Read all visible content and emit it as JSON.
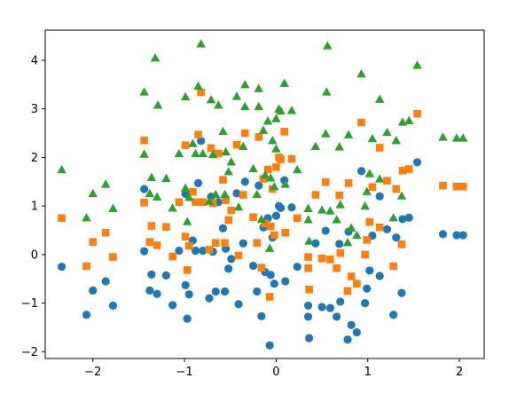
{
  "chart_data": {
    "type": "scatter",
    "title": "",
    "xlabel": "",
    "ylabel": "",
    "xlim": [
      -2.52,
      2.27
    ],
    "ylim": [
      -2.14,
      4.62
    ],
    "x_ticks": [
      -2,
      -1,
      0,
      1,
      2
    ],
    "y_ticks": [
      -2,
      -1,
      0,
      1,
      2,
      3,
      4
    ],
    "x_tick_labels": [
      "−2",
      "−1",
      "0",
      "1",
      "2"
    ],
    "y_tick_labels": [
      "−2",
      "−1",
      "0",
      "1",
      "2",
      "3",
      "4"
    ],
    "grid": false,
    "legend": false,
    "series": [
      {
        "marker": "circle",
        "color": "#1f77b4",
        "points": [
          [
            -2.34,
            -0.25
          ],
          [
            -2.07,
            -1.24
          ],
          [
            -2.0,
            -0.74
          ],
          [
            -1.86,
            -0.55
          ],
          [
            -1.78,
            -1.05
          ],
          [
            -1.44,
            1.35
          ],
          [
            -1.44,
            0.07
          ],
          [
            -1.38,
            -0.74
          ],
          [
            -1.36,
            -0.41
          ],
          [
            -1.3,
            -0.81
          ],
          [
            -1.2,
            -0.43
          ],
          [
            -1.13,
            -1.04
          ],
          [
            -1.06,
            0.08
          ],
          [
            -0.99,
            1.25
          ],
          [
            -0.99,
            -0.63
          ],
          [
            -0.97,
            -1.32
          ],
          [
            -0.95,
            -0.82
          ],
          [
            -0.91,
            0.29
          ],
          [
            -0.88,
            0.08
          ],
          [
            -0.85,
            1.47
          ],
          [
            -0.82,
            2.34
          ],
          [
            -0.8,
            0.08
          ],
          [
            -0.73,
            -0.9
          ],
          [
            -0.71,
            1.19
          ],
          [
            -0.69,
            0.06
          ],
          [
            -0.66,
            -0.76
          ],
          [
            -0.63,
            1.08
          ],
          [
            -0.58,
            0.54
          ],
          [
            -0.56,
            -0.76
          ],
          [
            -0.55,
            0.12
          ],
          [
            -0.52,
            -0.29
          ],
          [
            -0.49,
            -0.09
          ],
          [
            -0.43,
            1.26
          ],
          [
            -0.41,
            -1.02
          ],
          [
            -0.36,
            0.23
          ],
          [
            -0.34,
            1.5
          ],
          [
            -0.25,
            -0.23
          ],
          [
            -0.21,
            -0.76
          ],
          [
            -0.19,
            1.42
          ],
          [
            -0.16,
            -1.27
          ],
          [
            -0.14,
            0.56
          ],
          [
            -0.12,
            -0.36
          ],
          [
            -0.09,
            0.75
          ],
          [
            -0.07,
            -1.87
          ],
          [
            -0.06,
            -0.42
          ],
          [
            -0.04,
            0.35
          ],
          [
            -0.02,
            -0.6
          ],
          [
            0.0,
            0.8
          ],
          [
            0.03,
            1.0
          ],
          [
            0.05,
            0.96
          ],
          [
            0.09,
            1.53
          ],
          [
            0.1,
            -0.55
          ],
          [
            0.17,
            0.97
          ],
          [
            0.23,
            -0.25
          ],
          [
            0.35,
            -1.05
          ],
          [
            0.35,
            -1.28
          ],
          [
            0.36,
            -1.72
          ],
          [
            0.43,
            0.23
          ],
          [
            0.5,
            -1.08
          ],
          [
            0.54,
            0.49
          ],
          [
            0.59,
            -1.1
          ],
          [
            0.66,
            -1.28
          ],
          [
            0.69,
            0.22
          ],
          [
            0.7,
            -0.97
          ],
          [
            0.78,
            -1.75
          ],
          [
            0.79,
            0.47
          ],
          [
            0.82,
            -1.45
          ],
          [
            0.88,
            -1.6
          ],
          [
            0.93,
            1.72
          ],
          [
            0.97,
            -1.0
          ],
          [
            0.99,
            -0.7
          ],
          [
            1.02,
            -0.33
          ],
          [
            1.05,
            0.39
          ],
          [
            1.13,
            -0.44
          ],
          [
            1.13,
            1.2
          ],
          [
            1.21,
            0.52
          ],
          [
            1.28,
            -1.24
          ],
          [
            1.31,
            0.35
          ],
          [
            1.37,
            -0.79
          ],
          [
            1.38,
            0.73
          ],
          [
            1.45,
            0.76
          ],
          [
            1.54,
            1.9
          ],
          [
            1.82,
            0.42
          ],
          [
            1.97,
            0.4
          ],
          [
            2.04,
            0.4
          ]
        ]
      },
      {
        "marker": "square",
        "color": "#ff7f0e",
        "points": [
          [
            -2.34,
            0.75
          ],
          [
            -2.07,
            -0.24
          ],
          [
            -2.0,
            0.26
          ],
          [
            -1.86,
            0.45
          ],
          [
            -1.78,
            -0.05
          ],
          [
            -1.44,
            2.35
          ],
          [
            -1.44,
            1.07
          ],
          [
            -1.38,
            0.26
          ],
          [
            -1.36,
            0.59
          ],
          [
            -1.3,
            0.19
          ],
          [
            -1.2,
            0.57
          ],
          [
            -1.13,
            -0.04
          ],
          [
            -1.06,
            1.08
          ],
          [
            -0.99,
            2.25
          ],
          [
            -0.99,
            0.37
          ],
          [
            -0.97,
            -0.32
          ],
          [
            -0.95,
            0.18
          ],
          [
            -0.91,
            1.29
          ],
          [
            -0.88,
            1.08
          ],
          [
            -0.85,
            2.47
          ],
          [
            -0.82,
            3.34
          ],
          [
            -0.8,
            1.08
          ],
          [
            -0.73,
            0.1
          ],
          [
            -0.71,
            2.19
          ],
          [
            -0.69,
            1.06
          ],
          [
            -0.66,
            0.24
          ],
          [
            -0.63,
            2.08
          ],
          [
            -0.58,
            1.54
          ],
          [
            -0.56,
            0.24
          ],
          [
            -0.55,
            1.12
          ],
          [
            -0.52,
            0.71
          ],
          [
            -0.49,
            0.91
          ],
          [
            -0.43,
            2.26
          ],
          [
            -0.41,
            -0.02
          ],
          [
            -0.36,
            1.23
          ],
          [
            -0.34,
            2.5
          ],
          [
            -0.25,
            0.77
          ],
          [
            -0.21,
            0.24
          ],
          [
            -0.19,
            2.42
          ],
          [
            -0.16,
            -0.27
          ],
          [
            -0.14,
            1.56
          ],
          [
            -0.12,
            0.64
          ],
          [
            -0.09,
            1.75
          ],
          [
            -0.07,
            -0.87
          ],
          [
            -0.06,
            0.58
          ],
          [
            -0.04,
            1.35
          ],
          [
            -0.02,
            0.4
          ],
          [
            0.0,
            1.8
          ],
          [
            0.03,
            2.0
          ],
          [
            0.05,
            1.96
          ],
          [
            0.09,
            2.53
          ],
          [
            0.1,
            0.45
          ],
          [
            0.17,
            1.97
          ],
          [
            0.23,
            0.75
          ],
          [
            0.35,
            -0.05
          ],
          [
            0.35,
            -0.28
          ],
          [
            0.36,
            -0.72
          ],
          [
            0.43,
            1.23
          ],
          [
            0.5,
            -0.08
          ],
          [
            0.54,
            1.49
          ],
          [
            0.59,
            -0.1
          ],
          [
            0.66,
            -0.28
          ],
          [
            0.69,
            1.22
          ],
          [
            0.7,
            0.03
          ],
          [
            0.78,
            -0.75
          ],
          [
            0.79,
            1.47
          ],
          [
            0.82,
            -0.45
          ],
          [
            0.88,
            -0.6
          ],
          [
            0.93,
            2.72
          ],
          [
            0.97,
            0.0
          ],
          [
            0.99,
            0.3
          ],
          [
            1.02,
            0.67
          ],
          [
            1.05,
            1.39
          ],
          [
            1.13,
            0.56
          ],
          [
            1.13,
            2.2
          ],
          [
            1.21,
            1.52
          ],
          [
            1.28,
            -0.24
          ],
          [
            1.31,
            1.35
          ],
          [
            1.37,
            0.21
          ],
          [
            1.38,
            1.73
          ],
          [
            1.45,
            1.76
          ],
          [
            1.54,
            2.9
          ],
          [
            1.82,
            1.42
          ],
          [
            1.97,
            1.4
          ],
          [
            2.04,
            1.4
          ]
        ]
      },
      {
        "marker": "triangle",
        "color": "#2ca02c",
        "points": [
          [
            -2.34,
            1.75
          ],
          [
            -2.07,
            0.76
          ],
          [
            -2.0,
            1.26
          ],
          [
            -1.86,
            1.45
          ],
          [
            -1.78,
            0.95
          ],
          [
            -1.44,
            3.35
          ],
          [
            -1.44,
            2.07
          ],
          [
            -1.38,
            1.26
          ],
          [
            -1.36,
            1.59
          ],
          [
            -1.3,
            1.19
          ],
          [
            -1.2,
            1.57
          ],
          [
            -1.13,
            0.96
          ],
          [
            -1.06,
            2.08
          ],
          [
            -0.99,
            3.25
          ],
          [
            -0.99,
            1.37
          ],
          [
            -0.97,
            0.68
          ],
          [
            -0.95,
            1.18
          ],
          [
            -0.91,
            2.29
          ],
          [
            -0.88,
            2.08
          ],
          [
            -0.85,
            3.47
          ],
          [
            -0.82,
            4.34
          ],
          [
            -0.8,
            2.08
          ],
          [
            -0.73,
            1.1
          ],
          [
            -0.71,
            3.19
          ],
          [
            -0.69,
            2.06
          ],
          [
            -0.66,
            1.24
          ],
          [
            -0.63,
            3.08
          ],
          [
            -0.58,
            2.54
          ],
          [
            -0.56,
            1.24
          ],
          [
            -0.55,
            2.12
          ],
          [
            -0.52,
            1.71
          ],
          [
            -0.49,
            1.91
          ],
          [
            -0.43,
            3.26
          ],
          [
            -0.41,
            0.98
          ],
          [
            -0.36,
            2.23
          ],
          [
            -0.34,
            3.5
          ],
          [
            -0.25,
            1.77
          ],
          [
            -0.21,
            1.24
          ],
          [
            -0.19,
            3.42
          ],
          [
            -0.16,
            0.73
          ],
          [
            -0.14,
            2.56
          ],
          [
            -0.12,
            1.64
          ],
          [
            -0.09,
            2.75
          ],
          [
            -0.07,
            0.13
          ],
          [
            -0.06,
            1.58
          ],
          [
            -0.04,
            2.35
          ],
          [
            -0.02,
            1.4
          ],
          [
            0.0,
            2.8
          ],
          [
            0.03,
            3.0
          ],
          [
            0.05,
            2.96
          ],
          [
            0.09,
            3.53
          ],
          [
            0.1,
            1.45
          ],
          [
            0.17,
            2.97
          ],
          [
            0.23,
            1.75
          ],
          [
            0.35,
            0.95
          ],
          [
            0.35,
            0.72
          ],
          [
            0.36,
            0.28
          ],
          [
            0.43,
            2.23
          ],
          [
            0.5,
            0.92
          ],
          [
            0.54,
            2.49
          ],
          [
            0.59,
            0.9
          ],
          [
            0.66,
            0.72
          ],
          [
            0.69,
            2.22
          ],
          [
            0.7,
            1.03
          ],
          [
            0.78,
            0.25
          ],
          [
            0.79,
            2.47
          ],
          [
            0.82,
            0.55
          ],
          [
            0.88,
            0.4
          ],
          [
            0.93,
            3.72
          ],
          [
            0.97,
            1.0
          ],
          [
            0.99,
            1.3
          ],
          [
            1.02,
            1.67
          ],
          [
            1.05,
            2.39
          ],
          [
            1.13,
            1.56
          ],
          [
            1.13,
            3.2
          ],
          [
            1.21,
            2.52
          ],
          [
            1.28,
            0.76
          ],
          [
            1.31,
            2.35
          ],
          [
            1.37,
            1.21
          ],
          [
            1.38,
            2.73
          ],
          [
            1.45,
            2.76
          ],
          [
            1.54,
            3.9
          ],
          [
            1.82,
            2.42
          ],
          [
            1.97,
            2.4
          ],
          [
            2.04,
            2.4
          ],
          [
            -0.34,
            3.05
          ],
          [
            0.56,
            4.3
          ],
          [
            -1.32,
            4.05
          ],
          [
            -1.29,
            3.08
          ],
          [
            -0.19,
            3.05
          ],
          [
            0.0,
            2.18
          ],
          [
            0.55,
            3.35
          ]
        ]
      }
    ]
  }
}
